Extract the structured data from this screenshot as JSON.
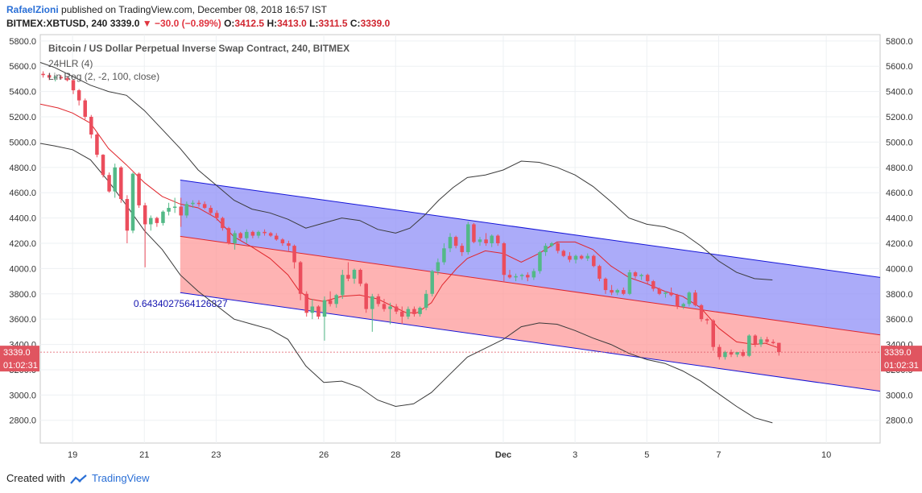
{
  "header": {
    "author": "RafaelZioni",
    "published": "published on TradingView.com, December 08, 2018 16:57 IST",
    "symbol": "BITMEX:XBTUSD, 240",
    "last": "3339.0",
    "change": "−30.0 (−0.89%)",
    "o_label": "O:",
    "o_value": "3412.5",
    "h_label": "H:",
    "h_value": "3413.0",
    "l_label": "L:",
    "l_value": "3311.5",
    "c_label": "C:",
    "c_value": "3339.0"
  },
  "legend": {
    "title": "Bitcoin / US Dollar Perpetual Inverse Swap Contract, 240, BITMEX",
    "indicator1": "24HLR (4)",
    "indicator2": "Lin Reg (2, -2, 100, close)"
  },
  "footer": {
    "created_with": "Created with",
    "brand": "TradingView"
  },
  "colors": {
    "up": "#53b987",
    "down": "#eb4d5c",
    "ma": "#e0262c",
    "band": "#3a3a3a",
    "channel_upper_fill": "#8f8ff7",
    "channel_lower_fill": "#fd9a9a",
    "channel_line": "#1515d8",
    "mid_line": "#e0262c",
    "price_tag": "#e05560"
  },
  "chart_data": {
    "type": "candlestick",
    "symbol": "BITMEX:XBTUSD",
    "interval": "240",
    "y_ticks": [
      2800,
      3000,
      3200,
      3400,
      3600,
      3800,
      4000,
      4200,
      4400,
      4600,
      4800,
      5000,
      5200,
      5400,
      5600,
      5800
    ],
    "ylim": [
      2620,
      5850
    ],
    "x_ticks": [
      {
        "label": "19",
        "day": 1
      },
      {
        "label": "21",
        "day": 3
      },
      {
        "label": "23",
        "day": 5
      },
      {
        "label": "26",
        "day": 8
      },
      {
        "label": "28",
        "day": 10
      },
      {
        "label": "Dec",
        "day": 13
      },
      {
        "label": "3",
        "day": 15
      },
      {
        "label": "5",
        "day": 17
      },
      {
        "label": "7",
        "day": 19
      },
      {
        "label": "10",
        "day": 22
      }
    ],
    "xlim_day": [
      0.1,
      23.5
    ],
    "day_origin": "Nov 18, 2018",
    "last_price_label": "3339.0",
    "countdown_label": "01:02:31",
    "regression_channel": {
      "start_day": 4.0,
      "end_day": 23.5,
      "upper": [
        4700,
        3930
      ],
      "middle": [
        4255,
        3475
      ],
      "lower": [
        3810,
        3030
      ],
      "r_value": "0.6434027564126827"
    },
    "candles": [
      [
        0.18,
        5540,
        5560,
        5510,
        5530
      ],
      [
        0.35,
        5530,
        5545,
        5490,
        5510
      ],
      [
        0.52,
        5510,
        5525,
        5480,
        5515
      ],
      [
        0.68,
        5515,
        5530,
        5495,
        5505
      ],
      [
        0.85,
        5505,
        5520,
        5480,
        5490
      ],
      [
        1.02,
        5490,
        5495,
        5380,
        5410
      ],
      [
        1.18,
        5410,
        5420,
        5290,
        5330
      ],
      [
        1.35,
        5330,
        5345,
        5180,
        5200
      ],
      [
        1.52,
        5200,
        5215,
        5030,
        5060
      ],
      [
        1.68,
        5060,
        5070,
        4880,
        4900
      ],
      [
        1.85,
        4900,
        4905,
        4720,
        4740
      ],
      [
        2.02,
        4740,
        4760,
        4600,
        4610
      ],
      [
        2.18,
        4610,
        4830,
        4560,
        4800
      ],
      [
        2.35,
        4800,
        4810,
        4520,
        4550
      ],
      [
        2.52,
        4550,
        4580,
        4200,
        4300
      ],
      [
        2.68,
        4300,
        4760,
        4280,
        4750
      ],
      [
        2.85,
        4750,
        4760,
        4480,
        4500
      ],
      [
        3.02,
        4500,
        4520,
        4010,
        4350
      ],
      [
        3.18,
        4350,
        4420,
        4300,
        4400
      ],
      [
        3.35,
        4400,
        4410,
        4330,
        4360
      ],
      [
        3.52,
        4360,
        4460,
        4340,
        4450
      ],
      [
        3.68,
        4450,
        4520,
        4420,
        4480
      ],
      [
        3.85,
        4480,
        4560,
        4440,
        4490
      ],
      [
        4.02,
        4490,
        4560,
        4330,
        4420
      ],
      [
        4.18,
        4420,
        4530,
        4400,
        4510
      ],
      [
        4.35,
        4510,
        4540,
        4480,
        4520
      ],
      [
        4.52,
        4520,
        4540,
        4490,
        4510
      ],
      [
        4.68,
        4510,
        4530,
        4470,
        4480
      ],
      [
        4.85,
        4480,
        4500,
        4420,
        4440
      ],
      [
        5.02,
        4440,
        4460,
        4380,
        4400
      ],
      [
        5.18,
        4400,
        4410,
        4300,
        4320
      ],
      [
        5.35,
        4320,
        4330,
        4190,
        4200
      ],
      [
        5.52,
        4200,
        4300,
        4150,
        4280
      ],
      [
        5.68,
        4280,
        4290,
        4220,
        4240
      ],
      [
        5.85,
        4240,
        4310,
        4200,
        4290
      ],
      [
        6.02,
        4290,
        4300,
        4240,
        4260
      ],
      [
        6.18,
        4260,
        4300,
        4240,
        4290
      ],
      [
        6.35,
        4290,
        4310,
        4260,
        4280
      ],
      [
        6.52,
        4280,
        4290,
        4250,
        4260
      ],
      [
        6.68,
        4260,
        4280,
        4220,
        4230
      ],
      [
        6.85,
        4230,
        4240,
        4180,
        4200
      ],
      [
        7.02,
        4200,
        4220,
        4140,
        4180
      ],
      [
        7.18,
        4180,
        4190,
        4000,
        4050
      ],
      [
        7.35,
        4050,
        4060,
        3750,
        3800
      ],
      [
        7.52,
        3800,
        3820,
        3620,
        3650
      ],
      [
        7.68,
        3650,
        3760,
        3600,
        3700
      ],
      [
        7.85,
        3700,
        3710,
        3600,
        3620
      ],
      [
        8.02,
        3620,
        3780,
        3430,
        3750
      ],
      [
        8.18,
        3750,
        3820,
        3700,
        3720
      ],
      [
        8.35,
        3720,
        3800,
        3690,
        3790
      ],
      [
        8.52,
        3790,
        3990,
        3760,
        3950
      ],
      [
        8.68,
        3950,
        4050,
        3900,
        3920
      ],
      [
        8.85,
        3920,
        4000,
        3880,
        3990
      ],
      [
        9.02,
        3990,
        4000,
        3860,
        3880
      ],
      [
        9.18,
        3880,
        3890,
        3650,
        3680
      ],
      [
        9.35,
        3680,
        3800,
        3500,
        3780
      ],
      [
        9.52,
        3780,
        3800,
        3700,
        3720
      ],
      [
        9.68,
        3720,
        3760,
        3660,
        3680
      ],
      [
        9.85,
        3680,
        3730,
        3560,
        3700
      ],
      [
        10.02,
        3700,
        3720,
        3640,
        3660
      ],
      [
        10.18,
        3660,
        3700,
        3560,
        3620
      ],
      [
        10.35,
        3620,
        3700,
        3600,
        3680
      ],
      [
        10.52,
        3680,
        3700,
        3620,
        3640
      ],
      [
        10.68,
        3640,
        3700,
        3620,
        3690
      ],
      [
        10.85,
        3690,
        3830,
        3670,
        3800
      ],
      [
        11.02,
        3800,
        3990,
        3780,
        3980
      ],
      [
        11.18,
        3980,
        4080,
        3950,
        4050
      ],
      [
        11.35,
        4050,
        4200,
        4030,
        4160
      ],
      [
        11.52,
        4160,
        4280,
        4130,
        4250
      ],
      [
        11.68,
        4250,
        4260,
        4160,
        4180
      ],
      [
        11.85,
        4180,
        4200,
        4100,
        4130
      ],
      [
        12.02,
        4130,
        4370,
        4110,
        4350
      ],
      [
        12.18,
        4350,
        4360,
        4200,
        4210
      ],
      [
        12.35,
        4210,
        4250,
        4180,
        4230
      ],
      [
        12.52,
        4230,
        4280,
        4180,
        4200
      ],
      [
        12.68,
        4200,
        4270,
        4170,
        4260
      ],
      [
        12.85,
        4260,
        4270,
        4180,
        4200
      ],
      [
        13.02,
        4200,
        4210,
        3900,
        3950
      ],
      [
        13.18,
        3950,
        3990,
        3920,
        3930
      ],
      [
        13.35,
        3930,
        3960,
        3900,
        3940
      ],
      [
        13.52,
        3940,
        3960,
        3910,
        3950
      ],
      [
        13.68,
        3950,
        3970,
        3900,
        3930
      ],
      [
        13.85,
        3930,
        4000,
        3910,
        3980
      ],
      [
        14.02,
        3980,
        4140,
        3960,
        4130
      ],
      [
        14.18,
        4130,
        4200,
        4100,
        4180
      ],
      [
        14.35,
        4180,
        4210,
        4170,
        4200
      ],
      [
        14.52,
        4200,
        4210,
        4120,
        4140
      ],
      [
        14.68,
        4140,
        4150,
        4090,
        4100
      ],
      [
        14.85,
        4100,
        4130,
        4050,
        4070
      ],
      [
        15.02,
        4070,
        4110,
        4040,
        4100
      ],
      [
        15.18,
        4100,
        4110,
        4070,
        4080
      ],
      [
        15.35,
        4080,
        4120,
        4060,
        4100
      ],
      [
        15.52,
        4100,
        4110,
        4010,
        4020
      ],
      [
        15.68,
        4020,
        4030,
        3900,
        3920
      ],
      [
        15.85,
        3920,
        3930,
        3800,
        3830
      ],
      [
        16.02,
        3830,
        3870,
        3790,
        3810
      ],
      [
        16.18,
        3810,
        3840,
        3790,
        3830
      ],
      [
        16.35,
        3830,
        3850,
        3790,
        3800
      ],
      [
        16.52,
        3800,
        3990,
        3790,
        3970
      ],
      [
        16.68,
        3970,
        3980,
        3920,
        3940
      ],
      [
        16.85,
        3940,
        3960,
        3910,
        3950
      ],
      [
        17.02,
        3950,
        3960,
        3880,
        3900
      ],
      [
        17.18,
        3900,
        3910,
        3820,
        3840
      ],
      [
        17.35,
        3840,
        3850,
        3790,
        3800
      ],
      [
        17.52,
        3800,
        3820,
        3770,
        3810
      ],
      [
        17.68,
        3810,
        3850,
        3780,
        3790
      ],
      [
        17.85,
        3790,
        3800,
        3680,
        3700
      ],
      [
        18.02,
        3700,
        3730,
        3680,
        3720
      ],
      [
        18.18,
        3720,
        3820,
        3700,
        3810
      ],
      [
        18.35,
        3810,
        3830,
        3700,
        3710
      ],
      [
        18.52,
        3710,
        3720,
        3580,
        3600
      ],
      [
        18.68,
        3600,
        3610,
        3560,
        3590
      ],
      [
        18.85,
        3590,
        3600,
        3350,
        3380
      ],
      [
        19.02,
        3380,
        3400,
        3280,
        3300
      ],
      [
        19.18,
        3300,
        3350,
        3280,
        3340
      ],
      [
        19.35,
        3340,
        3360,
        3300,
        3320
      ],
      [
        19.52,
        3320,
        3340,
        3300,
        3340
      ],
      [
        19.68,
        3340,
        3360,
        3300,
        3310
      ],
      [
        19.85,
        3310,
        3480,
        3300,
        3470
      ],
      [
        20.02,
        3470,
        3480,
        3380,
        3400
      ],
      [
        20.18,
        3400,
        3460,
        3380,
        3440
      ],
      [
        20.35,
        3440,
        3460,
        3400,
        3420
      ],
      [
        20.52,
        3420,
        3440,
        3400,
        3410
      ],
      [
        20.68,
        3412.5,
        3413,
        3311.5,
        3339
      ]
    ],
    "ma_line": [
      [
        0.1,
        5300
      ],
      [
        0.6,
        5270
      ],
      [
        1.0,
        5230
      ],
      [
        1.5,
        5150
      ],
      [
        2.0,
        4950
      ],
      [
        2.5,
        4820
      ],
      [
        3.0,
        4680
      ],
      [
        3.5,
        4570
      ],
      [
        4.0,
        4510
      ],
      [
        4.5,
        4480
      ],
      [
        5.0,
        4400
      ],
      [
        5.5,
        4250
      ],
      [
        6.0,
        4170
      ],
      [
        6.5,
        4080
      ],
      [
        7.0,
        3950
      ],
      [
        7.3,
        3830
      ],
      [
        7.6,
        3760
      ],
      [
        8.0,
        3740
      ],
      [
        8.5,
        3780
      ],
      [
        9.0,
        3790
      ],
      [
        9.5,
        3760
      ],
      [
        10.0,
        3690
      ],
      [
        10.3,
        3650
      ],
      [
        10.6,
        3650
      ],
      [
        11.0,
        3730
      ],
      [
        11.3,
        3870
      ],
      [
        11.7,
        4000
      ],
      [
        12.0,
        4080
      ],
      [
        12.5,
        4140
      ],
      [
        13.0,
        4120
      ],
      [
        13.5,
        4050
      ],
      [
        14.0,
        4120
      ],
      [
        14.5,
        4210
      ],
      [
        15.0,
        4210
      ],
      [
        15.5,
        4150
      ],
      [
        16.0,
        4020
      ],
      [
        16.5,
        3930
      ],
      [
        17.0,
        3880
      ],
      [
        17.5,
        3820
      ],
      [
        18.0,
        3780
      ],
      [
        18.5,
        3690
      ],
      [
        19.0,
        3530
      ],
      [
        19.5,
        3420
      ],
      [
        20.0,
        3400
      ],
      [
        20.3,
        3410
      ],
      [
        20.7,
        3370
      ]
    ],
    "band_upper": [
      [
        0.1,
        5630
      ],
      [
        0.5,
        5590
      ],
      [
        1.0,
        5520
      ],
      [
        1.5,
        5450
      ],
      [
        2.0,
        5400
      ],
      [
        2.5,
        5370
      ],
      [
        3.0,
        5250
      ],
      [
        3.5,
        5100
      ],
      [
        4.0,
        4950
      ],
      [
        4.5,
        4780
      ],
      [
        5.0,
        4660
      ],
      [
        5.5,
        4540
      ],
      [
        6.0,
        4470
      ],
      [
        6.5,
        4440
      ],
      [
        7.0,
        4390
      ],
      [
        7.5,
        4320
      ],
      [
        8.0,
        4360
      ],
      [
        8.5,
        4400
      ],
      [
        9.0,
        4380
      ],
      [
        9.5,
        4310
      ],
      [
        10.0,
        4280
      ],
      [
        10.4,
        4320
      ],
      [
        10.8,
        4420
      ],
      [
        11.2,
        4540
      ],
      [
        11.6,
        4640
      ],
      [
        12.0,
        4720
      ],
      [
        12.5,
        4740
      ],
      [
        13.0,
        4780
      ],
      [
        13.5,
        4850
      ],
      [
        14.0,
        4840
      ],
      [
        14.5,
        4800
      ],
      [
        15.0,
        4740
      ],
      [
        15.5,
        4650
      ],
      [
        16.0,
        4530
      ],
      [
        16.5,
        4400
      ],
      [
        17.0,
        4350
      ],
      [
        17.5,
        4330
      ],
      [
        18.0,
        4280
      ],
      [
        18.5,
        4180
      ],
      [
        19.0,
        4060
      ],
      [
        19.5,
        3970
      ],
      [
        20.0,
        3920
      ],
      [
        20.5,
        3910
      ]
    ],
    "band_lower": [
      [
        0.1,
        4990
      ],
      [
        0.5,
        4970
      ],
      [
        1.0,
        4940
      ],
      [
        1.5,
        4860
      ],
      [
        2.0,
        4690
      ],
      [
        2.5,
        4500
      ],
      [
        3.0,
        4300
      ],
      [
        3.5,
        4150
      ],
      [
        4.0,
        3950
      ],
      [
        4.5,
        3820
      ],
      [
        5.0,
        3710
      ],
      [
        5.5,
        3600
      ],
      [
        6.0,
        3560
      ],
      [
        6.5,
        3520
      ],
      [
        7.0,
        3440
      ],
      [
        7.5,
        3230
      ],
      [
        8.0,
        3100
      ],
      [
        8.5,
        3110
      ],
      [
        9.0,
        3060
      ],
      [
        9.5,
        2960
      ],
      [
        10.0,
        2910
      ],
      [
        10.5,
        2930
      ],
      [
        11.0,
        3020
      ],
      [
        11.5,
        3160
      ],
      [
        12.0,
        3300
      ],
      [
        12.5,
        3370
      ],
      [
        13.0,
        3440
      ],
      [
        13.5,
        3540
      ],
      [
        14.0,
        3570
      ],
      [
        14.5,
        3560
      ],
      [
        15.0,
        3510
      ],
      [
        15.5,
        3450
      ],
      [
        16.0,
        3400
      ],
      [
        16.5,
        3330
      ],
      [
        17.0,
        3280
      ],
      [
        17.5,
        3250
      ],
      [
        18.0,
        3190
      ],
      [
        18.5,
        3110
      ],
      [
        19.0,
        3010
      ],
      [
        19.5,
        2910
      ],
      [
        20.0,
        2820
      ],
      [
        20.5,
        2780
      ]
    ]
  }
}
